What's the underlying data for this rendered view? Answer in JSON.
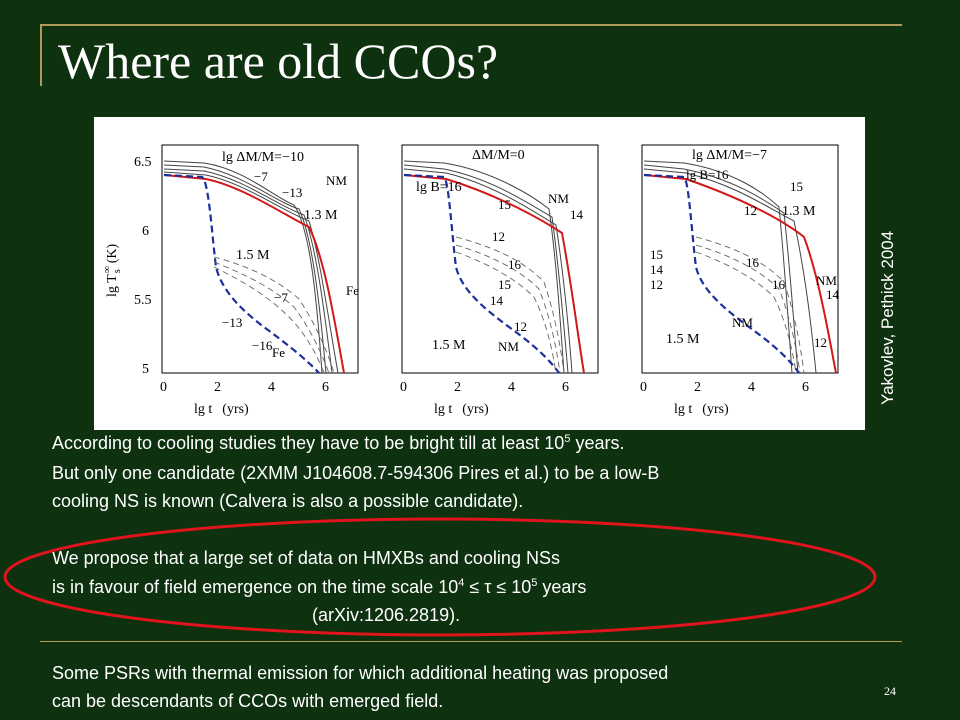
{
  "slide": {
    "title": "Where are old CCOs?",
    "credit": "Yakovlev, Pethick 2004",
    "page_number": "24",
    "paragraph1": {
      "line1_pre": "According to cooling studies they have to be bright till at least 10",
      "line1_sup": "5",
      "line1_post": " years.",
      "line2": "But only one candidate (2XMM J104608.7-594306 Pires et al.) to be a low-B",
      "line3": "cooling NS is known (Calvera is also a possible candidate)."
    },
    "paragraph2": {
      "line1": "We propose that a large set of data on HMXBs and cooling NSs",
      "line2_pre": "is in favour of field emergence on the time scale 10",
      "line2_sup1": "4",
      "line2_mid": " ≤ τ ≤ 10",
      "line2_sup2": "5",
      "line2_post": " years",
      "line3": "(arXiv:1206.2819)."
    },
    "paragraph3": {
      "line1": "Some PSRs with thermal emission for which additional heating was proposed",
      "line2": "can be descendants of CCOs with emerged field."
    },
    "colors": {
      "background": "#0e3110",
      "frame": "#b09a5a",
      "ellipse": "#e0141c",
      "text": "#ffffff"
    }
  },
  "figure": {
    "y_axis_label": "lg T",
    "y_axis_sub": "s",
    "y_axis_sup": "∞",
    "y_axis_unit": "(K)",
    "x_axis_label": "lg t",
    "x_axis_unit": "(yrs)",
    "y_ticks": [
      "6.5",
      "6",
      "5.5",
      "5"
    ],
    "x_ticks": [
      "0",
      "2",
      "4",
      "6"
    ],
    "panel1": {
      "header": "lg ΔM/M=−10",
      "labels": {
        "m7a": "−7",
        "m13a": "−13",
        "nm": "NM",
        "m13": "1.3 M",
        "m15": "1.5 M",
        "m7b": "−7",
        "m13b": "−13",
        "m16": "−16",
        "fe1": "Fe",
        "fe2": "Fe"
      }
    },
    "panel2": {
      "header": "ΔM/M=0",
      "labels": {
        "b16": "lg B=16",
        "b15": "15",
        "nm": "NM",
        "b14": "14",
        "b12": "12",
        "d16": "16",
        "d15": "15",
        "d14": "14",
        "d12": "12",
        "m15": "1.5 M",
        "nm2": "NM"
      }
    },
    "panel3": {
      "header": "lg ΔM/M=−7",
      "labels": {
        "b16": "lg B=16",
        "b15": "15",
        "b12": "12",
        "m13": "1.3 M",
        "l15": "15",
        "l14": "14",
        "l12": "12",
        "d16": "16",
        "s16": "16",
        "nm": "NM",
        "n14": "14",
        "nm2": "NM",
        "n12": "12",
        "m15": "1.5 M"
      }
    }
  }
}
